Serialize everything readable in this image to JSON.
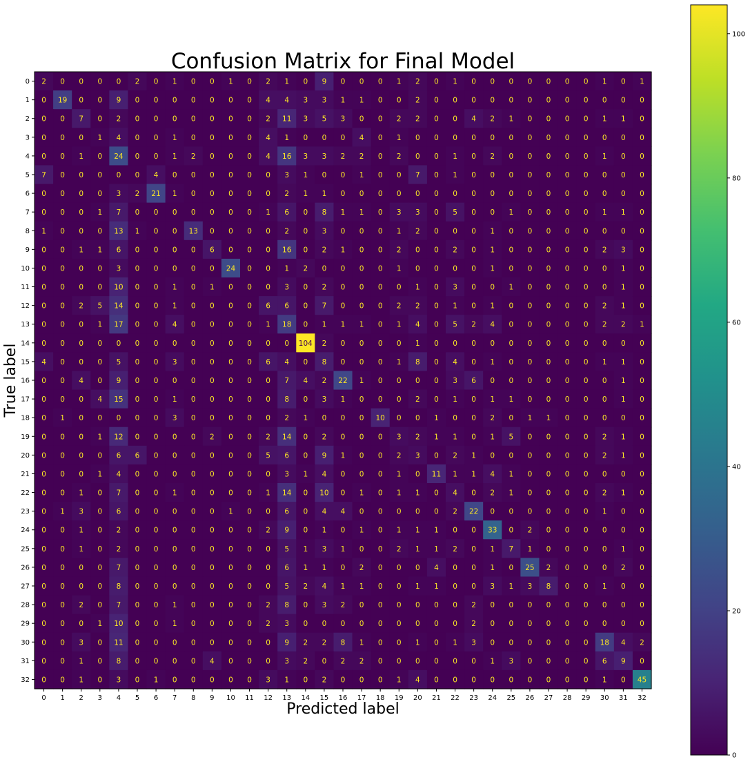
{
  "chart_data": {
    "type": "heatmap",
    "title": "Confusion Matrix for Final Model",
    "xlabel": "Predicted label",
    "ylabel": "True label",
    "labels": [
      "0",
      "1",
      "2",
      "3",
      "4",
      "5",
      "6",
      "7",
      "8",
      "9",
      "10",
      "11",
      "12",
      "13",
      "14",
      "15",
      "16",
      "17",
      "18",
      "19",
      "20",
      "21",
      "22",
      "23",
      "24",
      "25",
      "26",
      "27",
      "28",
      "29",
      "30",
      "31",
      "32"
    ],
    "matrix": [
      [
        2,
        0,
        0,
        0,
        0,
        2,
        0,
        1,
        0,
        0,
        1,
        0,
        2,
        1,
        0,
        9,
        0,
        0,
        0,
        1,
        2,
        0,
        1,
        0,
        0,
        0,
        0,
        0,
        0,
        0,
        1,
        0,
        1
      ],
      [
        0,
        19,
        0,
        0,
        9,
        0,
        0,
        0,
        0,
        0,
        0,
        0,
        4,
        4,
        3,
        3,
        1,
        1,
        0,
        0,
        2,
        0,
        0,
        0,
        0,
        0,
        0,
        0,
        0,
        0,
        0,
        0,
        0
      ],
      [
        0,
        0,
        7,
        0,
        2,
        0,
        0,
        0,
        0,
        0,
        0,
        0,
        2,
        11,
        3,
        5,
        3,
        0,
        0,
        2,
        2,
        0,
        0,
        4,
        2,
        1,
        0,
        0,
        0,
        0,
        1,
        1,
        0
      ],
      [
        0,
        0,
        0,
        1,
        4,
        0,
        0,
        1,
        0,
        0,
        0,
        0,
        4,
        1,
        0,
        0,
        0,
        4,
        0,
        1,
        0,
        0,
        0,
        0,
        0,
        0,
        0,
        0,
        0,
        0,
        0,
        0,
        0
      ],
      [
        0,
        0,
        1,
        0,
        24,
        0,
        0,
        1,
        2,
        0,
        0,
        0,
        4,
        16,
        3,
        3,
        2,
        2,
        0,
        2,
        0,
        0,
        1,
        0,
        2,
        0,
        0,
        0,
        0,
        0,
        1,
        0,
        0
      ],
      [
        7,
        0,
        0,
        0,
        0,
        0,
        4,
        0,
        0,
        0,
        0,
        0,
        0,
        3,
        1,
        0,
        0,
        1,
        0,
        0,
        7,
        0,
        1,
        0,
        0,
        0,
        0,
        0,
        0,
        0,
        0,
        0,
        0
      ],
      [
        0,
        0,
        0,
        0,
        3,
        2,
        21,
        1,
        0,
        0,
        0,
        0,
        0,
        2,
        1,
        1,
        0,
        0,
        0,
        0,
        0,
        0,
        0,
        0,
        0,
        0,
        0,
        0,
        0,
        0,
        0,
        0,
        0
      ],
      [
        0,
        0,
        0,
        1,
        7,
        0,
        0,
        0,
        0,
        0,
        0,
        0,
        1,
        6,
        0,
        8,
        1,
        1,
        0,
        3,
        3,
        0,
        5,
        0,
        0,
        1,
        0,
        0,
        0,
        0,
        1,
        1,
        0
      ],
      [
        1,
        0,
        0,
        0,
        13,
        1,
        0,
        0,
        13,
        0,
        0,
        0,
        0,
        2,
        0,
        3,
        0,
        0,
        0,
        1,
        2,
        0,
        0,
        0,
        1,
        0,
        0,
        0,
        0,
        0,
        0,
        0,
        0
      ],
      [
        0,
        0,
        1,
        1,
        6,
        0,
        0,
        0,
        0,
        6,
        0,
        0,
        0,
        16,
        0,
        2,
        1,
        0,
        0,
        2,
        0,
        0,
        2,
        0,
        1,
        0,
        0,
        0,
        0,
        0,
        2,
        3,
        0
      ],
      [
        0,
        0,
        0,
        0,
        3,
        0,
        0,
        0,
        0,
        0,
        24,
        0,
        0,
        1,
        2,
        0,
        0,
        0,
        0,
        1,
        0,
        0,
        0,
        0,
        1,
        0,
        0,
        0,
        0,
        0,
        0,
        1,
        0
      ],
      [
        0,
        0,
        0,
        0,
        10,
        0,
        0,
        1,
        0,
        1,
        0,
        0,
        0,
        3,
        0,
        2,
        0,
        0,
        0,
        0,
        1,
        0,
        3,
        0,
        0,
        1,
        0,
        0,
        0,
        0,
        0,
        1,
        0
      ],
      [
        0,
        0,
        2,
        5,
        14,
        0,
        0,
        1,
        0,
        0,
        0,
        0,
        6,
        6,
        0,
        7,
        0,
        0,
        0,
        2,
        2,
        0,
        1,
        0,
        1,
        0,
        0,
        0,
        0,
        0,
        2,
        1,
        0
      ],
      [
        0,
        0,
        0,
        1,
        17,
        0,
        0,
        4,
        0,
        0,
        0,
        0,
        1,
        18,
        0,
        1,
        1,
        1,
        0,
        1,
        4,
        0,
        5,
        2,
        4,
        0,
        0,
        0,
        0,
        0,
        2,
        2,
        1
      ],
      [
        0,
        0,
        0,
        0,
        0,
        0,
        0,
        0,
        0,
        0,
        0,
        0,
        0,
        0,
        104,
        2,
        0,
        0,
        0,
        0,
        1,
        0,
        0,
        0,
        0,
        0,
        0,
        0,
        0,
        0,
        0,
        0,
        0
      ],
      [
        4,
        0,
        0,
        0,
        5,
        0,
        0,
        3,
        0,
        0,
        0,
        0,
        6,
        4,
        0,
        8,
        0,
        0,
        0,
        1,
        8,
        0,
        4,
        0,
        1,
        0,
        0,
        0,
        0,
        0,
        1,
        1,
        0
      ],
      [
        0,
        0,
        4,
        0,
        9,
        0,
        0,
        0,
        0,
        0,
        0,
        0,
        0,
        7,
        4,
        2,
        22,
        1,
        0,
        0,
        0,
        0,
        3,
        6,
        0,
        0,
        0,
        0,
        0,
        0,
        0,
        1,
        0
      ],
      [
        0,
        0,
        0,
        4,
        15,
        0,
        0,
        1,
        0,
        0,
        0,
        0,
        0,
        8,
        0,
        3,
        1,
        0,
        0,
        0,
        2,
        0,
        1,
        0,
        1,
        1,
        0,
        0,
        0,
        0,
        0,
        1,
        0
      ],
      [
        0,
        1,
        0,
        0,
        0,
        0,
        0,
        3,
        0,
        0,
        0,
        0,
        0,
        2,
        1,
        0,
        0,
        0,
        10,
        0,
        0,
        1,
        0,
        0,
        2,
        0,
        1,
        1,
        0,
        0,
        0,
        0,
        0
      ],
      [
        0,
        0,
        0,
        1,
        12,
        0,
        0,
        0,
        0,
        2,
        0,
        0,
        2,
        14,
        0,
        2,
        0,
        0,
        0,
        3,
        2,
        1,
        1,
        0,
        1,
        5,
        0,
        0,
        0,
        0,
        2,
        1,
        0
      ],
      [
        0,
        0,
        0,
        0,
        6,
        6,
        0,
        0,
        0,
        0,
        0,
        0,
        5,
        6,
        0,
        9,
        1,
        0,
        0,
        2,
        3,
        0,
        2,
        1,
        0,
        0,
        0,
        0,
        0,
        0,
        2,
        1,
        0
      ],
      [
        0,
        0,
        0,
        1,
        4,
        0,
        0,
        0,
        0,
        0,
        0,
        0,
        0,
        3,
        1,
        4,
        0,
        0,
        0,
        1,
        0,
        11,
        1,
        1,
        4,
        1,
        0,
        0,
        0,
        0,
        0,
        0,
        0
      ],
      [
        0,
        0,
        1,
        0,
        7,
        0,
        0,
        1,
        0,
        0,
        0,
        0,
        1,
        14,
        0,
        10,
        0,
        1,
        0,
        1,
        1,
        0,
        4,
        0,
        2,
        1,
        0,
        0,
        0,
        0,
        2,
        1,
        0
      ],
      [
        0,
        1,
        3,
        0,
        6,
        0,
        0,
        0,
        0,
        0,
        1,
        0,
        0,
        6,
        0,
        4,
        4,
        0,
        0,
        0,
        0,
        0,
        2,
        22,
        0,
        0,
        0,
        0,
        0,
        0,
        1,
        0,
        0
      ],
      [
        0,
        0,
        1,
        0,
        2,
        0,
        0,
        0,
        0,
        0,
        0,
        0,
        2,
        9,
        0,
        1,
        0,
        1,
        0,
        1,
        1,
        1,
        0,
        0,
        33,
        0,
        2,
        0,
        0,
        0,
        0,
        0,
        0
      ],
      [
        0,
        0,
        1,
        0,
        2,
        0,
        0,
        0,
        0,
        0,
        0,
        0,
        0,
        5,
        1,
        3,
        1,
        0,
        0,
        2,
        1,
        1,
        2,
        0,
        1,
        7,
        1,
        0,
        0,
        0,
        0,
        1,
        0
      ],
      [
        0,
        0,
        0,
        0,
        7,
        0,
        0,
        0,
        0,
        0,
        0,
        0,
        0,
        6,
        1,
        1,
        0,
        2,
        0,
        0,
        0,
        4,
        0,
        0,
        1,
        0,
        25,
        2,
        0,
        0,
        0,
        2,
        0
      ],
      [
        0,
        0,
        0,
        0,
        8,
        0,
        0,
        0,
        0,
        0,
        0,
        0,
        0,
        5,
        2,
        4,
        1,
        1,
        0,
        0,
        1,
        1,
        0,
        0,
        3,
        1,
        3,
        8,
        0,
        0,
        1,
        0,
        0
      ],
      [
        0,
        0,
        2,
        0,
        7,
        0,
        0,
        1,
        0,
        0,
        0,
        0,
        2,
        8,
        0,
        3,
        2,
        0,
        0,
        0,
        0,
        0,
        0,
        2,
        0,
        0,
        0,
        0,
        0,
        0,
        0,
        0,
        0
      ],
      [
        0,
        0,
        0,
        1,
        10,
        0,
        0,
        1,
        0,
        0,
        0,
        0,
        2,
        3,
        0,
        0,
        0,
        0,
        0,
        0,
        0,
        0,
        0,
        2,
        0,
        0,
        0,
        0,
        0,
        0,
        0,
        0,
        0
      ],
      [
        0,
        0,
        3,
        0,
        11,
        0,
        0,
        0,
        0,
        0,
        0,
        0,
        0,
        9,
        2,
        2,
        8,
        1,
        0,
        0,
        1,
        0,
        1,
        3,
        0,
        0,
        0,
        0,
        0,
        0,
        18,
        4,
        2
      ],
      [
        0,
        0,
        1,
        0,
        8,
        0,
        0,
        0,
        0,
        4,
        0,
        0,
        0,
        3,
        2,
        0,
        2,
        2,
        0,
        0,
        0,
        0,
        0,
        0,
        1,
        3,
        0,
        0,
        0,
        0,
        6,
        9,
        0
      ],
      [
        0,
        0,
        1,
        0,
        3,
        0,
        1,
        0,
        0,
        0,
        0,
        0,
        3,
        1,
        0,
        2,
        0,
        0,
        0,
        1,
        4,
        0,
        0,
        0,
        0,
        0,
        0,
        0,
        0,
        0,
        1,
        0,
        45
      ]
    ],
    "colorbar": {
      "colormap": "viridis",
      "range": [
        0,
        104
      ],
      "ticks": [
        0,
        20,
        40,
        60,
        80,
        100
      ]
    },
    "grid": false
  }
}
